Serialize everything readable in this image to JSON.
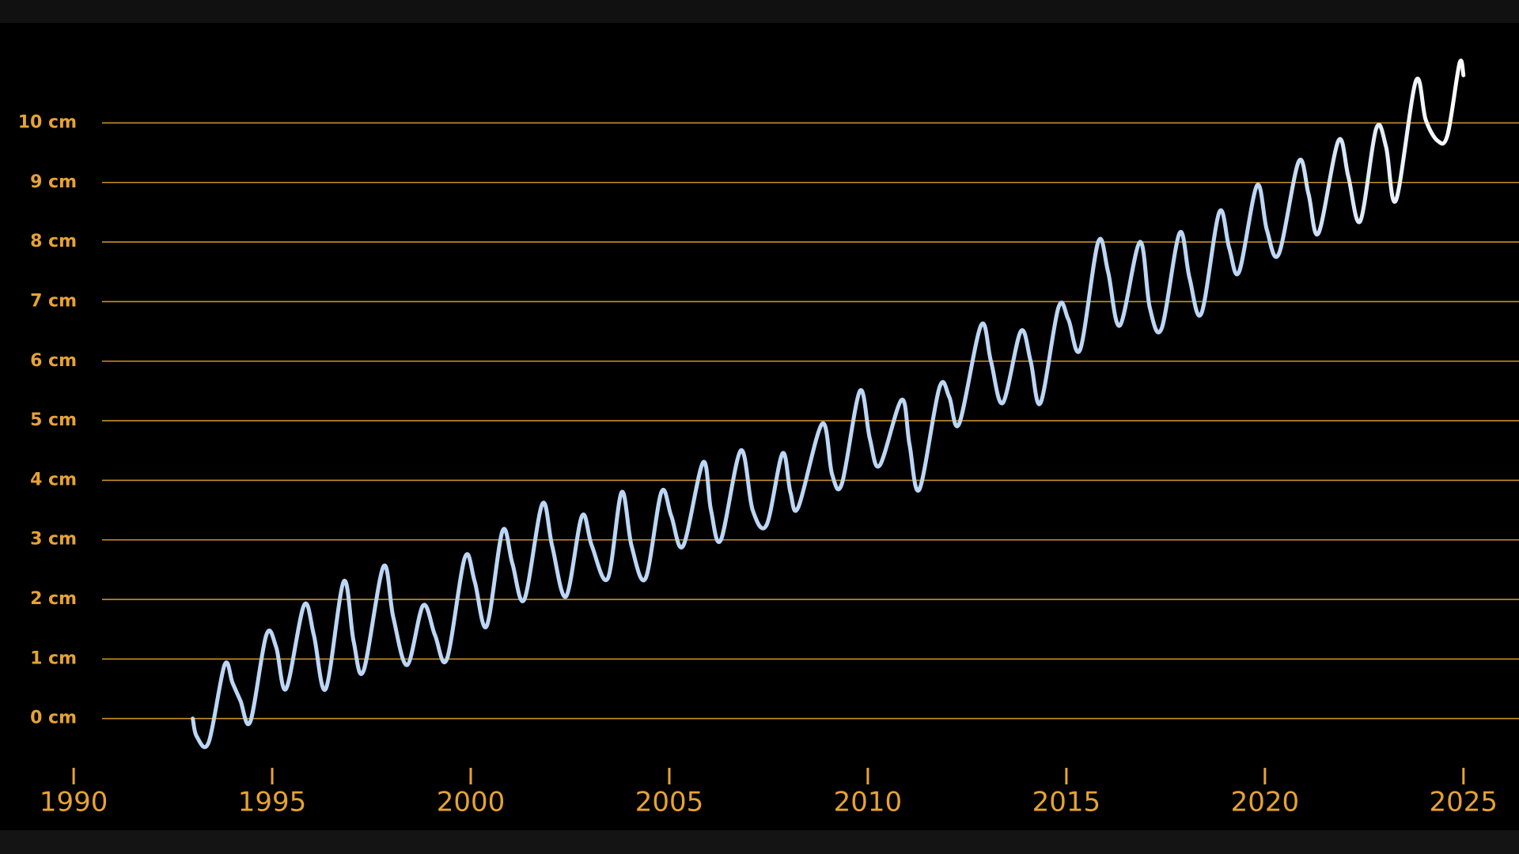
{
  "chart_data": {
    "type": "line",
    "x": [
      1993.0,
      1993.1,
      1993.4,
      1993.8,
      1994.0,
      1994.2,
      1994.45,
      1994.85,
      1995.1,
      1995.35,
      1995.8,
      1996.05,
      1996.35,
      1996.8,
      1997.05,
      1997.3,
      1997.8,
      1998.05,
      1998.4,
      1998.8,
      1999.1,
      1999.4,
      1999.85,
      2000.1,
      2000.4,
      2000.8,
      2001.05,
      2001.35,
      2001.8,
      2002.05,
      2002.4,
      2002.8,
      2003.05,
      2003.45,
      2003.8,
      2004.05,
      2004.4,
      2004.8,
      2005.05,
      2005.35,
      2005.85,
      2006.05,
      2006.3,
      2006.8,
      2007.1,
      2007.45,
      2007.85,
      2008.05,
      2008.25,
      2008.85,
      2009.1,
      2009.35,
      2009.8,
      2010.05,
      2010.3,
      2010.85,
      2011.05,
      2011.3,
      2011.8,
      2012.05,
      2012.3,
      2012.85,
      2013.1,
      2013.4,
      2013.85,
      2014.1,
      2014.35,
      2014.8,
      2015.05,
      2015.35,
      2015.8,
      2016.05,
      2016.35,
      2016.85,
      2017.1,
      2017.4,
      2017.85,
      2018.1,
      2018.4,
      2018.85,
      2019.1,
      2019.35,
      2019.8,
      2020.05,
      2020.35,
      2020.85,
      2021.1,
      2021.35,
      2021.85,
      2022.1,
      2022.4,
      2022.8,
      2023.05,
      2023.3,
      2023.8,
      2024.05,
      2024.35,
      2024.6,
      2024.9,
      2025.0
    ],
    "values": [
      0,
      -0.3,
      -0.4,
      0.9,
      0.6,
      0.3,
      -0.05,
      1.4,
      1.2,
      0.5,
      1.9,
      1.4,
      0.5,
      2.3,
      1.3,
      0.8,
      2.55,
      1.7,
      0.9,
      1.9,
      1.4,
      1.0,
      2.7,
      2.3,
      1.55,
      3.15,
      2.6,
      2.0,
      3.6,
      2.9,
      2.05,
      3.4,
      2.9,
      2.35,
      3.8,
      2.9,
      2.35,
      3.8,
      3.4,
      2.9,
      4.3,
      3.5,
      3.0,
      4.5,
      3.5,
      3.25,
      4.45,
      3.8,
      3.55,
      4.95,
      4.1,
      3.95,
      5.5,
      4.7,
      4.25,
      5.35,
      4.6,
      3.85,
      5.55,
      5.4,
      4.95,
      6.6,
      6.0,
      5.3,
      6.5,
      6.0,
      5.3,
      6.9,
      6.7,
      6.2,
      8.0,
      7.5,
      6.6,
      8.0,
      6.9,
      6.55,
      8.15,
      7.4,
      6.8,
      8.5,
      7.9,
      7.5,
      8.95,
      8.2,
      7.8,
      9.35,
      8.8,
      8.15,
      9.7,
      9.1,
      8.35,
      9.9,
      9.6,
      8.7,
      10.7,
      10.05,
      9.7,
      9.8,
      11.0,
      10.8
    ],
    "color": "#bcd6f5",
    "xlim": [
      1989.5,
      2026
    ],
    "xticks": [
      1990,
      1995,
      2000,
      2005,
      2010,
      2015,
      2020,
      2025
    ],
    "ylim": [
      -0.8,
      11.3
    ],
    "yticks": [
      {
        "value": 0,
        "label": "0 cm"
      },
      {
        "value": 1,
        "label": "1 cm"
      },
      {
        "value": 2,
        "label": "2 cm"
      },
      {
        "value": 3,
        "label": "3 cm"
      },
      {
        "value": 4,
        "label": "4 cm"
      },
      {
        "value": 5,
        "label": "5 cm"
      },
      {
        "value": 6,
        "label": "6 cm"
      },
      {
        "value": 7,
        "label": "7 cm"
      },
      {
        "value": 8,
        "label": "8 cm"
      },
      {
        "value": 9,
        "label": "9 cm"
      },
      {
        "value": 10,
        "label": "10 cm"
      }
    ],
    "grid": true
  }
}
